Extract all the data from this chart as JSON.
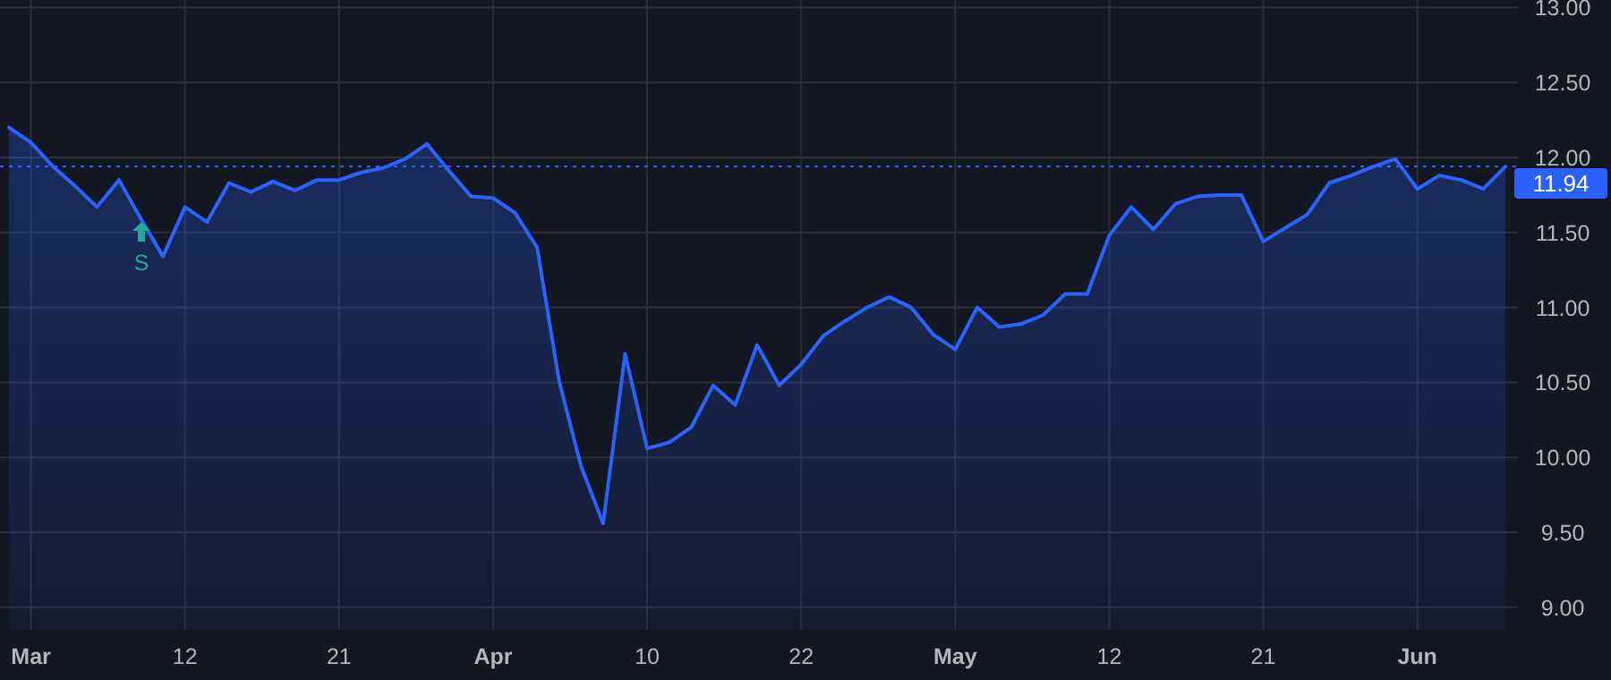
{
  "chart_data": {
    "type": "area",
    "categories": [
      null,
      "Mar",
      null,
      null,
      null,
      null,
      null,
      null,
      "12",
      null,
      null,
      null,
      null,
      null,
      null,
      "21",
      null,
      null,
      null,
      null,
      null,
      null,
      "Apr",
      null,
      null,
      null,
      null,
      null,
      null,
      "10",
      null,
      null,
      null,
      null,
      null,
      null,
      "22",
      null,
      null,
      null,
      null,
      null,
      null,
      "May",
      null,
      null,
      null,
      null,
      null,
      null,
      "12",
      null,
      null,
      null,
      null,
      null,
      null,
      "21",
      null,
      null,
      null,
      null,
      null,
      null,
      "Jun",
      null,
      null,
      null,
      null
    ],
    "series": [
      {
        "color": "#2962ff",
        "values": [
          12.2,
          12.1,
          11.94,
          11.81,
          11.67,
          11.85,
          11.59,
          11.34,
          11.67,
          11.57,
          11.83,
          11.77,
          11.84,
          11.78,
          11.85,
          11.85,
          11.9,
          11.93,
          11.99,
          12.09,
          11.91,
          11.74,
          11.73,
          11.63,
          11.4,
          10.51,
          9.94,
          9.56,
          10.69,
          10.06,
          10.1,
          10.2,
          10.48,
          10.35,
          10.75,
          10.48,
          10.62,
          10.81,
          10.91,
          11.0,
          11.07,
          11.0,
          10.82,
          10.72,
          11.0,
          10.87,
          10.89,
          10.95,
          11.09,
          11.09,
          11.48,
          11.67,
          11.52,
          11.69,
          11.74,
          11.75,
          11.75,
          11.44,
          11.53,
          11.62,
          11.83,
          11.88,
          11.94,
          11.99,
          11.79,
          11.88,
          11.85,
          11.79,
          11.94
        ]
      }
    ],
    "ylim": [
      8.85,
      13.05
    ],
    "yticks": [
      {
        "value": 9,
        "label": "9.00"
      },
      {
        "value": 9.5,
        "label": "9.50"
      },
      {
        "value": 10,
        "label": "10.00"
      },
      {
        "value": 10.5,
        "label": "10.50"
      },
      {
        "value": 11,
        "label": "11.00"
      },
      {
        "value": 11.5,
        "label": "11.50"
      },
      {
        "value": 12,
        "label": "12.00"
      },
      {
        "value": 12.5,
        "label": "12.50"
      },
      {
        "value": 13,
        "label": "13.00"
      }
    ],
    "ref_lines": [
      {
        "axis": "y",
        "value": 11.94,
        "label": "11.94",
        "color": "#2962ff",
        "line_style": "dotted"
      }
    ],
    "annotations": [
      "S"
    ],
    "grid": true,
    "line_style": "solid"
  }
}
